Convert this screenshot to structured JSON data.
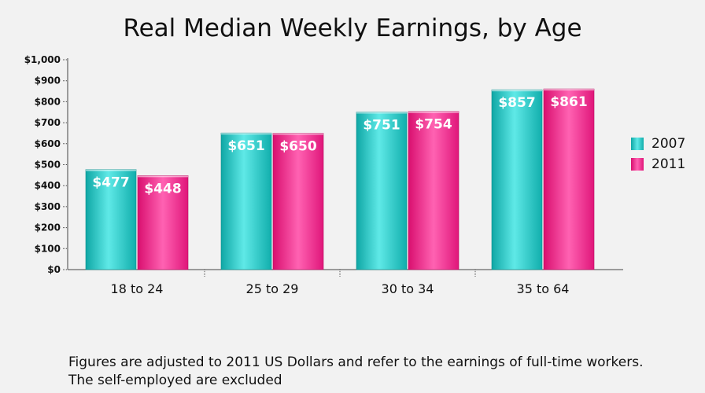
{
  "chart_data": {
    "type": "bar",
    "title": "Real Median Weekly Earnings, by Age",
    "categories": [
      "18 to 24",
      "25 to 29",
      "30 to 34",
      "35 to 64"
    ],
    "series": [
      {
        "name": "2007",
        "values": [
          477,
          651,
          751,
          857
        ],
        "labels": [
          "$477",
          "$651",
          "$751",
          "$857"
        ],
        "color": "#16b8b6"
      },
      {
        "name": "2011",
        "values": [
          448,
          650,
          754,
          861
        ],
        "labels": [
          "$448",
          "$650",
          "$754",
          "$861"
        ],
        "color": "#e6187c"
      }
    ],
    "ylim": [
      0,
      1000
    ],
    "yticks": [
      0,
      100,
      200,
      300,
      400,
      500,
      600,
      700,
      800,
      900,
      1000
    ],
    "ytick_labels": [
      "$0",
      "$100",
      "$200",
      "$300",
      "$400",
      "$500",
      "$600",
      "$700",
      "$800",
      "$900",
      "$1,000"
    ],
    "xlabel": "",
    "ylabel": "",
    "grid": false,
    "legend_position": "right"
  },
  "footnote": {
    "line1": "Figures are adjusted to 2011 US Dollars and refer to the earnings of full-time workers.",
    "line2": "The self-employed are excluded"
  }
}
